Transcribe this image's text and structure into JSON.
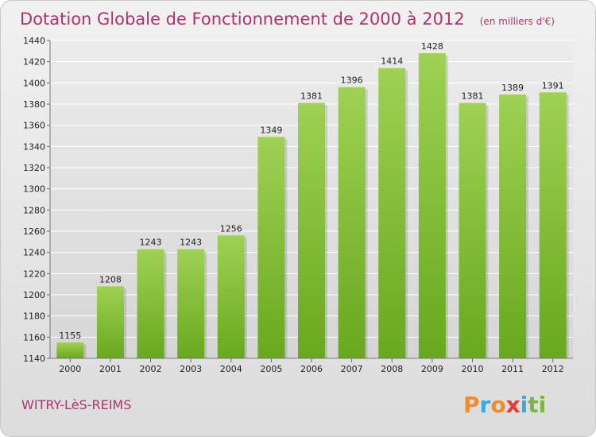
{
  "chart_data": {
    "type": "bar",
    "title": "Dotation Globale de Fonctionnement de 2000 à 2012",
    "subtitle": "(en milliers d'€)",
    "xlabel": "",
    "ylabel": "",
    "categories": [
      "2000",
      "2001",
      "2002",
      "2003",
      "2004",
      "2005",
      "2006",
      "2007",
      "2008",
      "2009",
      "2010",
      "2011",
      "2012"
    ],
    "values": [
      1155,
      1208,
      1243,
      1243,
      1256,
      1349,
      1381,
      1396,
      1414,
      1428,
      1381,
      1389,
      1391
    ],
    "ylim": [
      1140,
      1440
    ],
    "yticks": [
      1140,
      1160,
      1180,
      1200,
      1220,
      1240,
      1260,
      1280,
      1300,
      1320,
      1340,
      1360,
      1380,
      1400,
      1420,
      1440
    ],
    "grid": true,
    "bar_color_top": "#9fd154",
    "bar_color_bottom": "#68a81e"
  },
  "location": "WITRY-LèS-REIMS",
  "brand": {
    "letters": [
      "P",
      "r",
      "o",
      "x",
      "i",
      "t",
      "i"
    ],
    "colors": [
      "#f28a2e",
      "#3aa9de",
      "#f28a2e",
      "#e43b36",
      "#3aa9de",
      "#7ab83b",
      "#7ab83b"
    ]
  }
}
